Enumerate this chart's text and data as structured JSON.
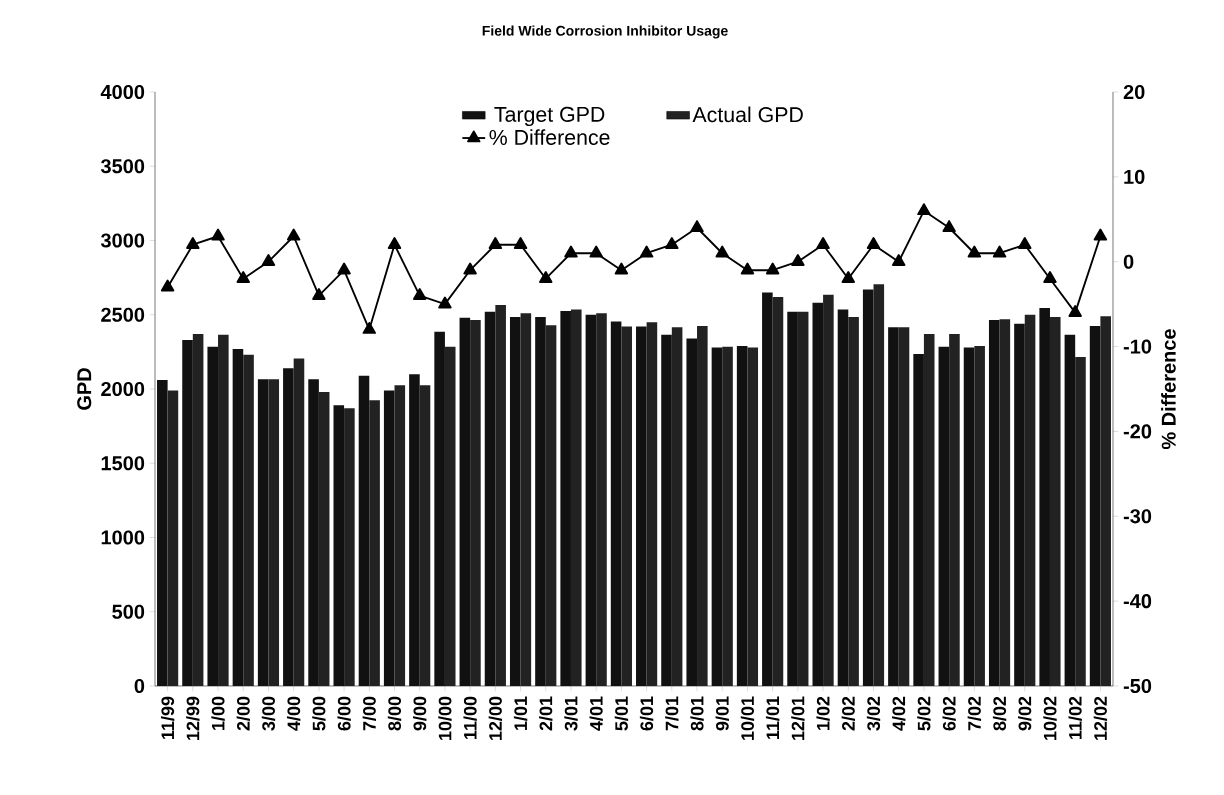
{
  "chart_data": {
    "type": "bar",
    "title": "Field Wide Corrosion Inhibitor Usage",
    "ylabel": "GPD",
    "y2label": "% Difference",
    "categories": [
      "11/99",
      "12/99",
      "1/00",
      "2/00",
      "3/00",
      "4/00",
      "5/00",
      "6/00",
      "7/00",
      "8/00",
      "9/00",
      "10/00",
      "11/00",
      "12/00",
      "1/01",
      "2/01",
      "3/01",
      "4/01",
      "5/01",
      "6/01",
      "7/01",
      "8/01",
      "9/01",
      "10/01",
      "11/01",
      "12/01",
      "1/02",
      "2/02",
      "3/02",
      "4/02",
      "5/02",
      "6/02",
      "7/02",
      "8/02",
      "9/02",
      "10/02",
      "11/02",
      "12/02"
    ],
    "series": [
      {
        "name": "Target GPD",
        "color": "#111111",
        "values": [
          2060,
          2330,
          2285,
          2270,
          2065,
          2140,
          2065,
          1890,
          2090,
          1990,
          2100,
          2385,
          2480,
          2520,
          2485,
          2485,
          2525,
          2500,
          2455,
          2420,
          2365,
          2340,
          2280,
          2290,
          2650,
          2520,
          2580,
          2535,
          2670,
          2415,
          2235,
          2285,
          2280,
          2465,
          2440,
          2545,
          2365,
          2425
        ]
      },
      {
        "name": "Actual GPD",
        "color": "#222222",
        "values": [
          1990,
          2370,
          2365,
          2230,
          2065,
          2205,
          1980,
          1870,
          1925,
          2025,
          2025,
          2285,
          2465,
          2565,
          2510,
          2430,
          2535,
          2510,
          2420,
          2450,
          2415,
          2425,
          2285,
          2280,
          2620,
          2520,
          2635,
          2485,
          2705,
          2415,
          2370,
          2370,
          2290,
          2470,
          2500,
          2485,
          2215,
          2490
        ]
      },
      {
        "name": "% Difference",
        "type": "line",
        "axis": "y2",
        "color": "#000000",
        "marker": "triangle",
        "values": [
          -3,
          2,
          3,
          -2,
          0,
          3,
          -4,
          -1,
          -8,
          2,
          -4,
          -5,
          -1,
          2,
          2,
          -2,
          1,
          1,
          -1,
          1,
          2,
          4,
          1,
          -1,
          -1,
          0,
          2,
          -2,
          2,
          0,
          6,
          4,
          1,
          1,
          2,
          -2,
          -6,
          3
        ]
      }
    ],
    "ylim": [
      0,
      4000
    ],
    "yticks": [
      0,
      500,
      1000,
      1500,
      2000,
      2500,
      3000,
      3500,
      4000
    ],
    "y2lim": [
      -50,
      20
    ],
    "y2ticks": [
      -50,
      -40,
      -30,
      -20,
      -10,
      0,
      10,
      20
    ],
    "legend": "top"
  }
}
